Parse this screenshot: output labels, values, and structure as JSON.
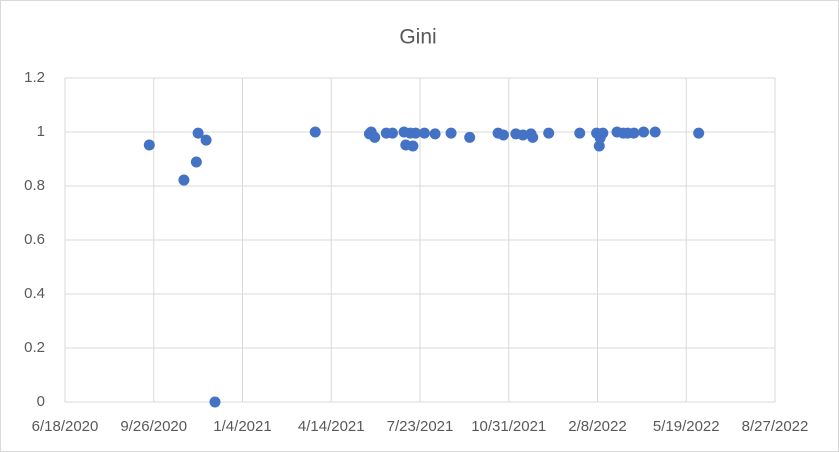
{
  "chart_data": {
    "type": "scatter",
    "title": "Gini",
    "color": "#4472c4",
    "grid": true,
    "x": [
      44095,
      44134,
      44148,
      44150,
      44159,
      44169,
      44282,
      44343,
      44345,
      44349,
      44362,
      44369,
      44382,
      44384,
      44389,
      44392,
      44395,
      44405,
      44417,
      44435,
      44456,
      44488,
      44494,
      44508,
      44516,
      44525,
      44527,
      44545,
      44580,
      44599,
      44603,
      44602,
      44606,
      44622,
      44629,
      44634,
      44641,
      44652,
      44665,
      44714
    ],
    "values": [
      0.952,
      0.822,
      0.889,
      0.996,
      0.97,
      0,
      1.0,
      0.993,
      1.0,
      0.98,
      0.996,
      0.996,
      1.0,
      0.952,
      0.996,
      0.948,
      0.996,
      0.996,
      0.993,
      0.996,
      0.98,
      0.996,
      0.989,
      0.993,
      0.989,
      0.993,
      0.98,
      0.996,
      0.996,
      0.996,
      0.978,
      0.948,
      0.996,
      1.0,
      0.996,
      0.996,
      0.996,
      1.0,
      1.0,
      0.996
    ],
    "xlim": [
      44000,
      44800
    ],
    "xticks": [
      {
        "value": 44000,
        "label": "6/18/2020"
      },
      {
        "value": 44100,
        "label": "9/26/2020"
      },
      {
        "value": 44200,
        "label": "1/4/2021"
      },
      {
        "value": 44300,
        "label": "4/14/2021"
      },
      {
        "value": 44400,
        "label": "7/23/2021"
      },
      {
        "value": 44500,
        "label": "10/31/2021"
      },
      {
        "value": 44600,
        "label": "2/8/2022"
      },
      {
        "value": 44700,
        "label": "5/19/2022"
      },
      {
        "value": 44800,
        "label": "8/27/2022"
      }
    ],
    "ylim": [
      0,
      1.2
    ],
    "yticks": [
      0,
      0.2,
      0.4,
      0.6,
      0.8,
      1,
      1.2
    ]
  }
}
